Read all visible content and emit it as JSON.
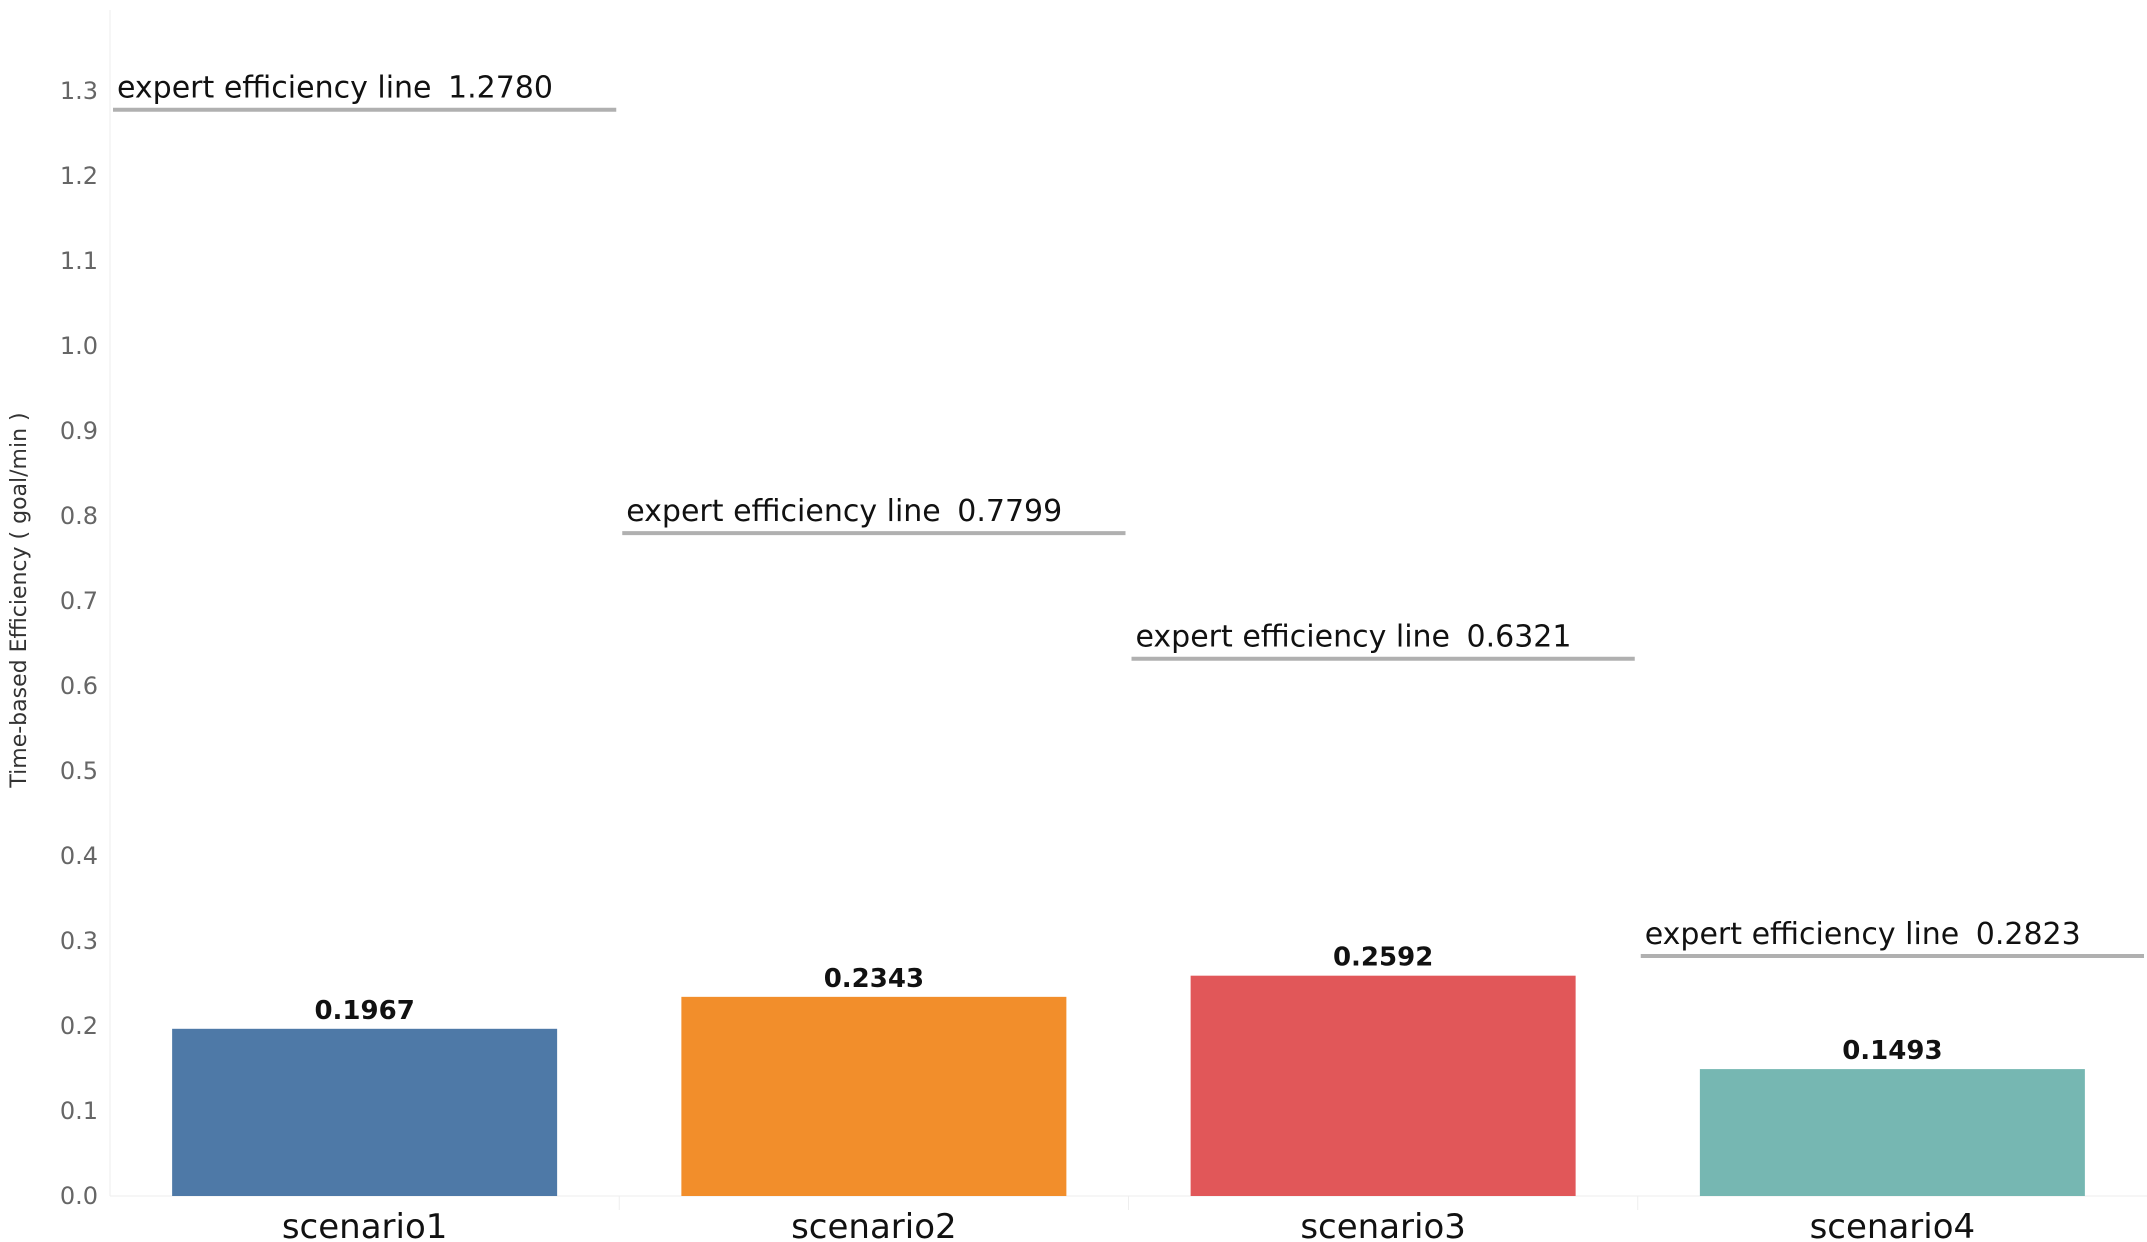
{
  "chart_data": {
    "type": "bar",
    "title": "",
    "xlabel": "",
    "ylabel": "Time-based Efficiency ( goal/min )",
    "ylim": [
      0,
      1.35
    ],
    "yticks": [
      "0.0",
      "0.1",
      "0.2",
      "0.3",
      "0.4",
      "0.5",
      "0.6",
      "0.7",
      "0.8",
      "0.9",
      "1.0",
      "1.1",
      "1.2",
      "1.3"
    ],
    "categories": [
      "scenario1",
      "scenario2",
      "scenario3",
      "scenario4"
    ],
    "values": [
      0.1967,
      0.2343,
      0.2592,
      0.1493
    ],
    "value_labels": [
      "0.1967",
      "0.2343",
      "0.2592",
      "0.1493"
    ],
    "colors": [
      "#4e79a7",
      "#f28e2b",
      "#e15759",
      "#76b7b2"
    ],
    "reference_lines": [
      {
        "label": "expert efficiency line",
        "value": 1.278,
        "value_label": "1.2780"
      },
      {
        "label": "expert efficiency line",
        "value": 0.7799,
        "value_label": "0.7799"
      },
      {
        "label": "expert efficiency line",
        "value": 0.6321,
        "value_label": "0.6321"
      },
      {
        "label": "expert efficiency line",
        "value": 0.2823,
        "value_label": "0.2823"
      }
    ],
    "reference_line_color": "#b0b0b0",
    "grid": false,
    "legend": "none"
  }
}
